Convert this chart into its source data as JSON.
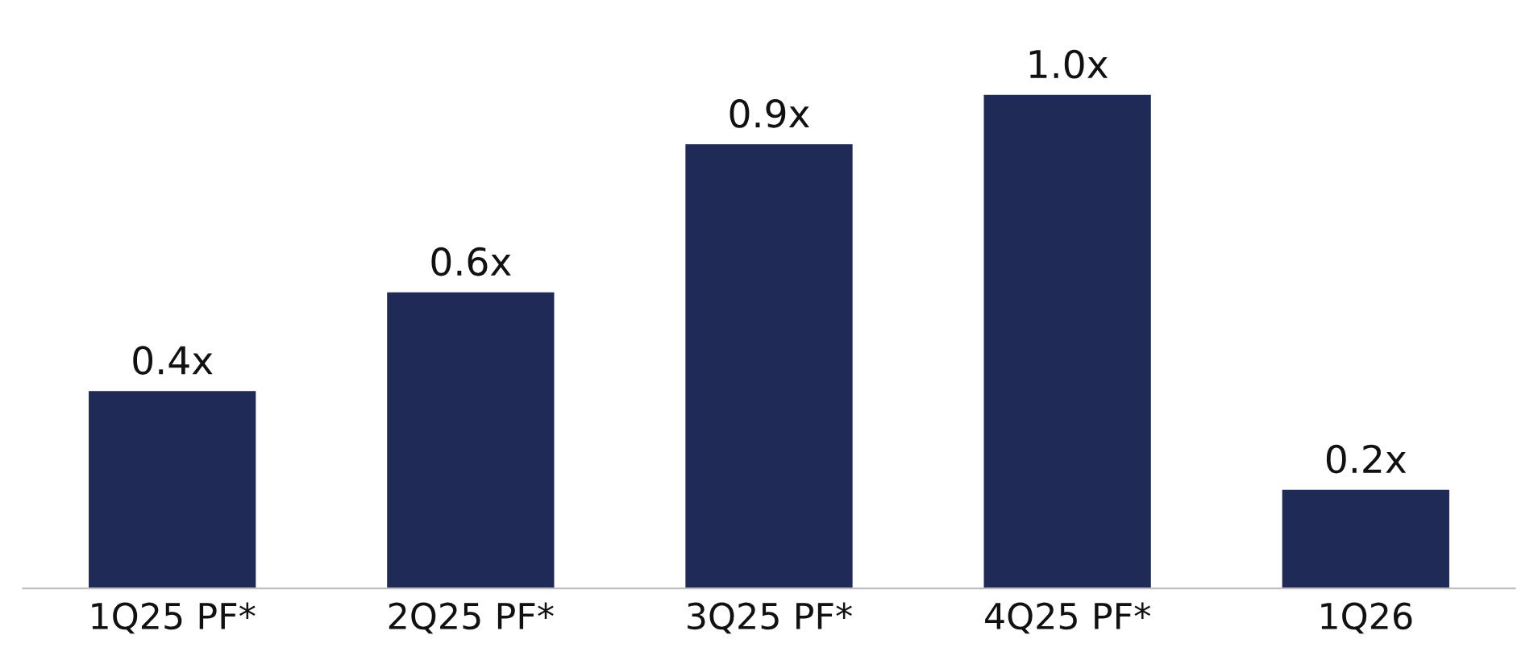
{
  "chart_data": {
    "type": "bar",
    "categories": [
      "1Q25 PF*",
      "2Q25 PF*",
      "3Q25 PF*",
      "4Q25 PF*",
      "1Q26"
    ],
    "values": [
      0.4,
      0.6,
      0.9,
      1.0,
      0.2
    ],
    "value_labels": [
      "0.4x",
      "0.6x",
      "0.9x",
      "1.0x",
      "0.2x"
    ],
    "color": "#1f2a56",
    "grid": false,
    "legend": false
  }
}
